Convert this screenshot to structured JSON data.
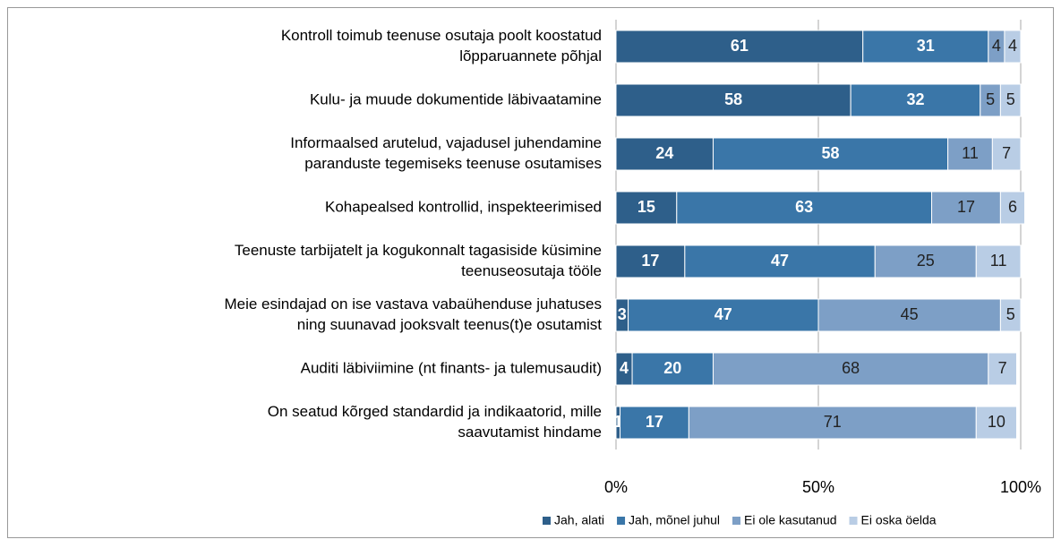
{
  "chart_data": {
    "type": "stacked_barh",
    "categories": [
      [
        "Kontroll toimub teenuse osutaja poolt koostatud",
        "lõpparuannete põhjal"
      ],
      [
        "Kulu- ja muude dokumentide läbivaatamine"
      ],
      [
        "Informaalsed arutelud, vajadusel juhendamine",
        "paranduste tegemiseks teenuse osutamises"
      ],
      [
        "Kohapealsed kontrollid, inspekteerimised"
      ],
      [
        "Teenuste tarbijatelt ja kogukonnalt tagasiside küsimine",
        "teenuseosutaja tööle"
      ],
      [
        "Meie esindajad on ise vastava vabaühenduse juhatuses",
        "ning suunavad jooksvalt teenus(t)e osutamist"
      ],
      [
        "Auditi läbiviimine (nt finants- ja tulemusaudit)"
      ],
      [
        "On seatud kõrged standardid ja indikaatorid, mille",
        "saavutamist hindame"
      ]
    ],
    "series": [
      {
        "name": "Jah, alati",
        "color": "#2e5f8a",
        "values": [
          61,
          58,
          24,
          15,
          17,
          3,
          4,
          1
        ]
      },
      {
        "name": "Jah, mõnel juhul",
        "color": "#3a76a8",
        "values": [
          31,
          32,
          58,
          63,
          47,
          47,
          20,
          17
        ]
      },
      {
        "name": "Ei ole kasutanud",
        "color": "#7d9fc6",
        "values": [
          4,
          5,
          11,
          17,
          25,
          45,
          68,
          71
        ]
      },
      {
        "name": "Ei oska öelda",
        "color": "#b9cde5",
        "values": [
          4,
          5,
          7,
          6,
          11,
          5,
          7,
          10
        ]
      }
    ],
    "xlim": [
      0,
      100
    ],
    "xticks": [
      {
        "value": 0,
        "label": "0%"
      },
      {
        "value": 50,
        "label": "50%"
      },
      {
        "value": 100,
        "label": "100%"
      }
    ],
    "grid": true,
    "legend": "bottom"
  }
}
